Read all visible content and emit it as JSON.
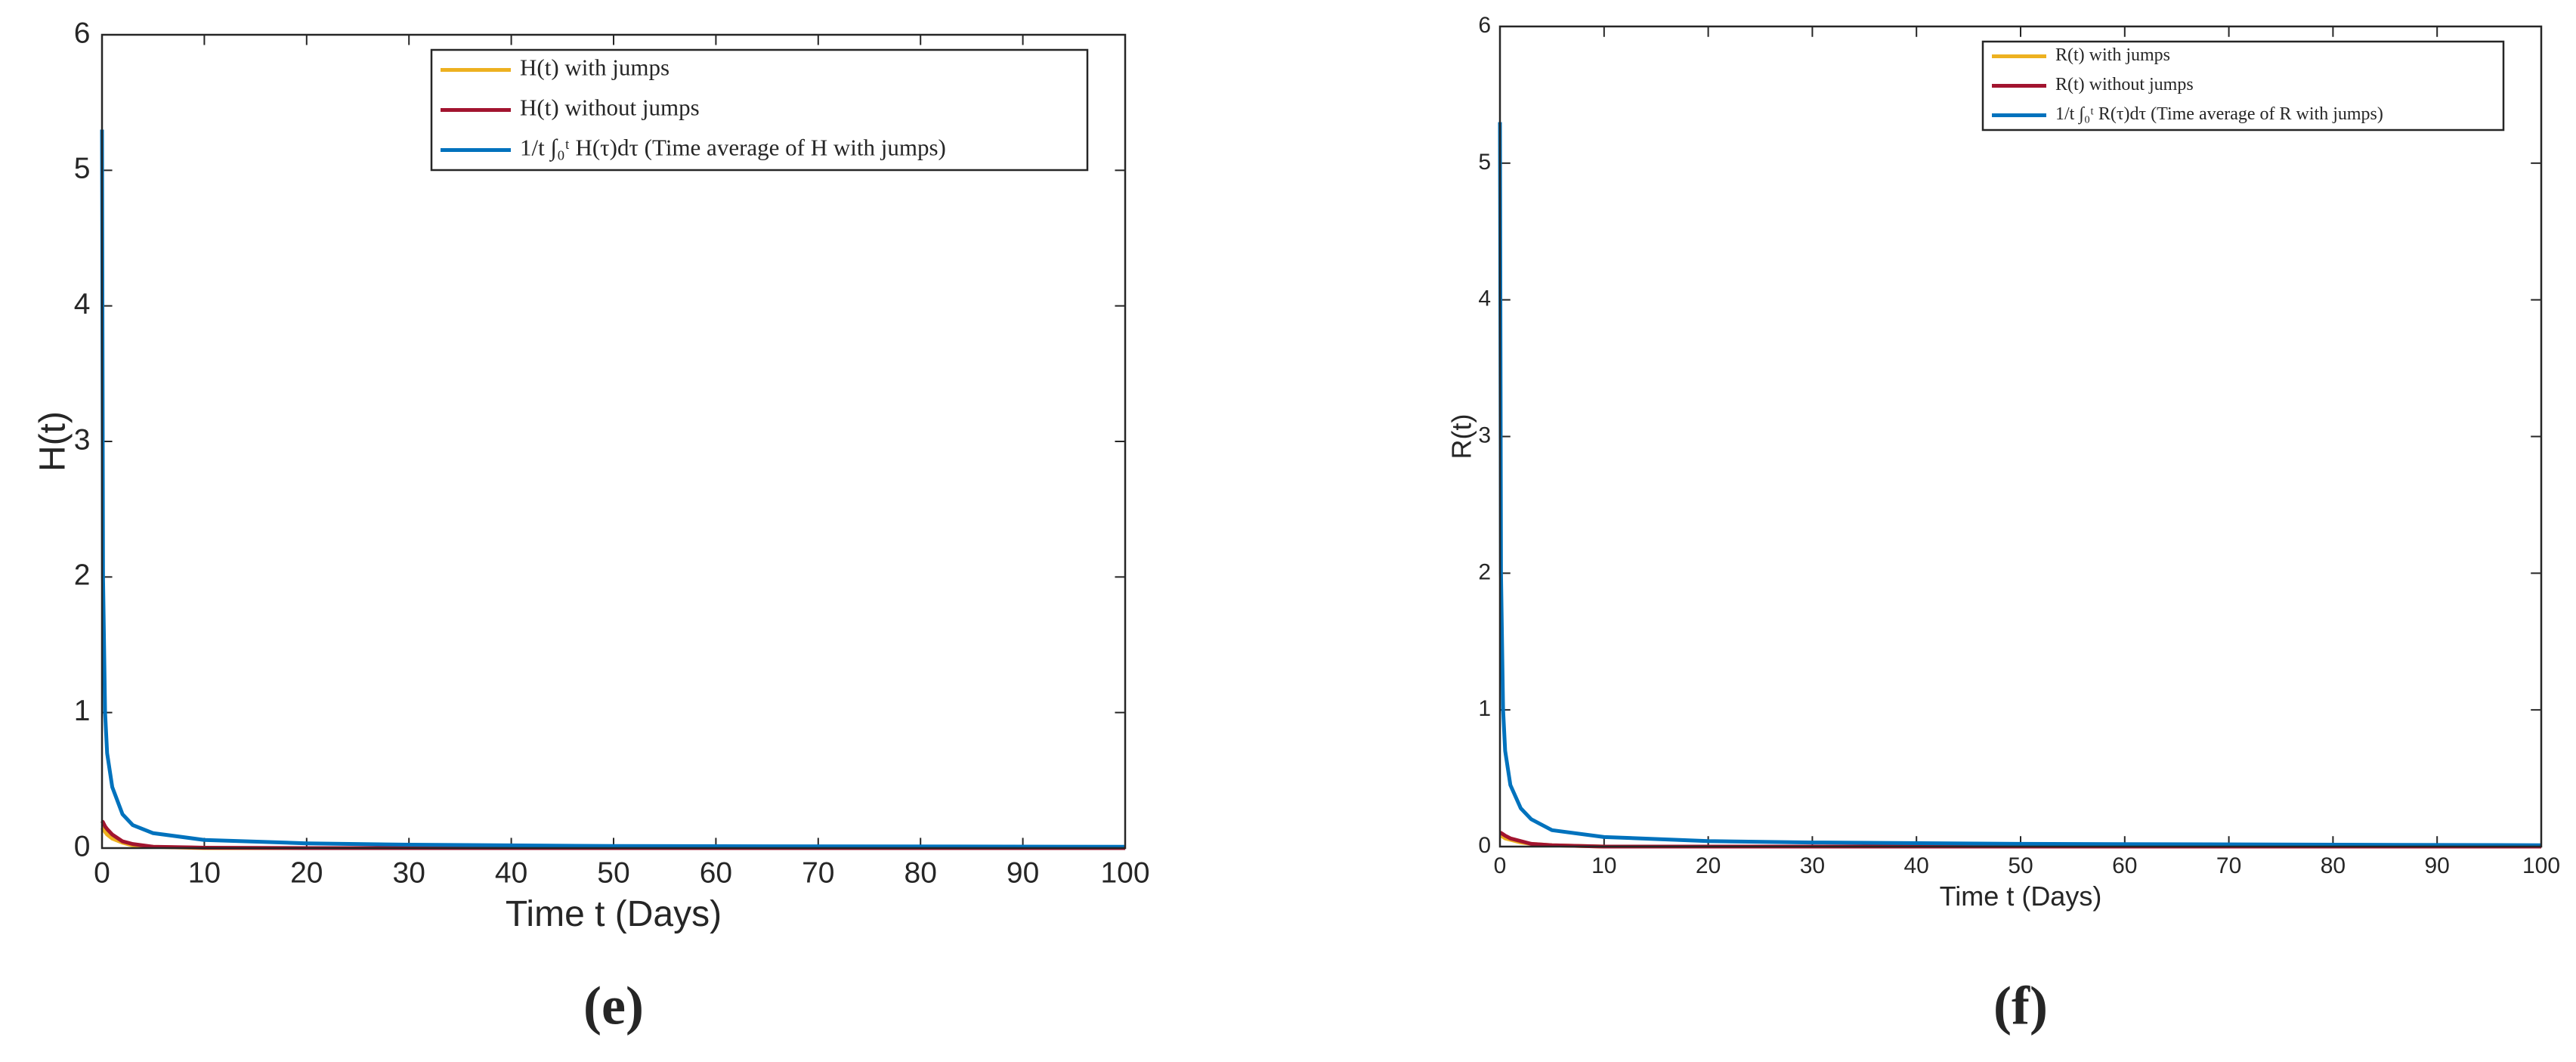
{
  "chart_data": [
    {
      "type": "line",
      "caption": "(e)",
      "x_label": "Time t (Days)",
      "y_label": "H(t)",
      "x": [
        0,
        0.1,
        0.3,
        0.5,
        1,
        2,
        3,
        5,
        10,
        20,
        30,
        50,
        100
      ],
      "series": [
        {
          "name": "H(t) with jumps",
          "color": "#edb120",
          "values": [
            0.15,
            0.14,
            0.12,
            0.1,
            0.07,
            0.04,
            0.02,
            0.01,
            0,
            0,
            0,
            0,
            0
          ]
        },
        {
          "name": "H(t) without jumps",
          "color": "#a2142f",
          "values": [
            0.2,
            0.19,
            0.16,
            0.14,
            0.1,
            0.05,
            0.03,
            0.01,
            0.003,
            0,
            0,
            0,
            0
          ]
        },
        {
          "name": "1/t ∫₀ᵗ H(τ)dτ (Time average of H with jumps)",
          "color": "#0072bd",
          "values": [
            5.3,
            2.0,
            1.0,
            0.7,
            0.45,
            0.25,
            0.17,
            0.11,
            0.06,
            0.035,
            0.025,
            0.015,
            0.01
          ]
        }
      ],
      "xlim": [
        0,
        100
      ],
      "xticks": [
        0,
        10,
        20,
        30,
        40,
        50,
        60,
        70,
        80,
        90,
        100
      ],
      "ylim": [
        0,
        6
      ],
      "yticks": [
        0,
        1,
        2,
        3,
        4,
        5,
        6
      ],
      "legend": "top-right"
    },
    {
      "type": "line",
      "caption": "(f)",
      "x_label": "Time t (Days)",
      "y_label": "R(t)",
      "x": [
        0,
        0.1,
        0.3,
        0.5,
        1,
        2,
        3,
        5,
        10,
        20,
        30,
        50,
        100
      ],
      "series": [
        {
          "name": "R(t) with jumps",
          "color": "#edb120",
          "values": [
            0.08,
            0.08,
            0.07,
            0.06,
            0.05,
            0.03,
            0.02,
            0.01,
            0,
            0,
            0,
            0,
            0
          ]
        },
        {
          "name": "R(t) without jumps",
          "color": "#a2142f",
          "values": [
            0.1,
            0.1,
            0.09,
            0.08,
            0.06,
            0.04,
            0.02,
            0.01,
            0,
            0,
            0,
            0,
            0
          ]
        },
        {
          "name": "1/t ∫₀ᵗ R(τ)dτ (Time average of R with jumps)",
          "color": "#0072bd",
          "values": [
            5.3,
            2.0,
            1.0,
            0.7,
            0.45,
            0.28,
            0.2,
            0.12,
            0.07,
            0.04,
            0.03,
            0.02,
            0.01
          ]
        }
      ],
      "xlim": [
        0,
        100
      ],
      "xticks": [
        0,
        10,
        20,
        30,
        40,
        50,
        60,
        70,
        80,
        90,
        100
      ],
      "ylim": [
        0,
        6
      ],
      "yticks": [
        0,
        1,
        2,
        3,
        4,
        5,
        6
      ],
      "legend": "top-right"
    }
  ]
}
